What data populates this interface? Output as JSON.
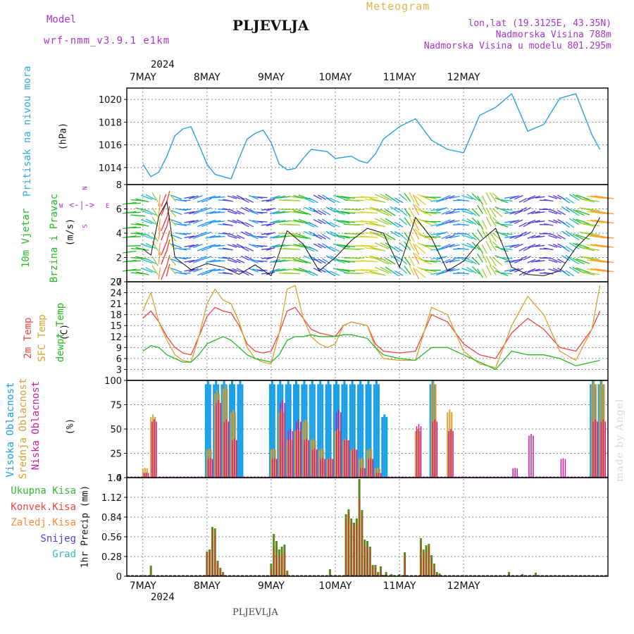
{
  "header": {
    "model_label": "Model",
    "model_name": "wrf-nmm_v3.9.1 e1km",
    "station": "PLJEVLJA",
    "meteogram": "Meteogram",
    "lonlat": "lon,lat (19.3125E, 43.35N)",
    "altitude": "Nadmorska Visina 788m",
    "model_altitude": "Nadmorska Visina u modelu 801.295m",
    "year_top": "2024",
    "year_bottom": "2024",
    "footer_station": "PLJEVLJA",
    "watermark": "made by Angel"
  },
  "days": [
    "7MAY",
    "8MAY",
    "9MAY",
    "10MAY",
    "11MAY",
    "12MAY"
  ],
  "panel_labels": {
    "pressure": {
      "name": "Pritisak na nivou mora",
      "unit": "(hPa)"
    },
    "wind": {
      "name1": "10m Vjetar",
      "name2": "Brzina i Pravac",
      "unit": "(m/s)",
      "compass_n": "N",
      "compass_s": "S",
      "compass_w": "W",
      "compass_e": "E"
    },
    "temp": {
      "t2m": "2m Temp",
      "sfc": "SFC Temp",
      "dew": "dewpt Temp",
      "unit": "(C)"
    },
    "cloud": {
      "high": "Visoka Oblacnost",
      "mid": "Srednja Oblacnost",
      "low": "Niska Oblacnost",
      "unit": "(%)"
    },
    "precip": {
      "unit": "1hr Precip (mm)"
    }
  },
  "precip_legend": [
    {
      "label": "Ukupna Kisa",
      "color": "#33bb33"
    },
    {
      "label": "Konvek.Kisa",
      "color": "#ee4444"
    },
    {
      "label": "Zaledj.Kisa",
      "color": "#ff8833"
    },
    {
      "label": "Snijeg",
      "color": "#4444dd"
    },
    {
      "label": "Grad",
      "color": "#33bbbb"
    }
  ],
  "colors": {
    "pressure": "#2a9fe0",
    "t2m": "#ee4444",
    "sfc": "#d9a030",
    "dew": "#22bb22",
    "cloud_high": "#1aa0e6",
    "cloud_mid": "#d9a030",
    "cloud_low": "#cc1aa0",
    "precip_total": "#5a8a1a",
    "precip_conv": "#d83a2a",
    "label_purple": "#aa33cc",
    "label_cyan": "#33aadd",
    "label_green": "#22bb22",
    "label_orange": "#d9a030",
    "label_magenta": "#cc1aa0",
    "title_orange": "#e8b048"
  },
  "chart_data": [
    {
      "type": "line",
      "panel": "pressure",
      "ylabel": "(hPa)",
      "ylim": [
        1012.5,
        1021
      ],
      "yticks": [
        1014,
        1016,
        1018,
        1020
      ],
      "x_hours": [
        0,
        3,
        6,
        9,
        12,
        15,
        18,
        21,
        24,
        27,
        30,
        33,
        36,
        39,
        42,
        45,
        48,
        51,
        54,
        57,
        60,
        63,
        66,
        69,
        72,
        75,
        78,
        81,
        84,
        87,
        90,
        96,
        102,
        108,
        114,
        120,
        126,
        132,
        138,
        144,
        150,
        156,
        162,
        168,
        171
      ],
      "series": [
        {
          "name": "Pritisak na nivou mora",
          "values": [
            1014.3,
            1013.2,
            1013.6,
            1015.0,
            1016.8,
            1017.4,
            1017.6,
            1016.0,
            1014.3,
            1013.4,
            1013.2,
            1013.0,
            1014.8,
            1016.5,
            1017.0,
            1017.3,
            1016.2,
            1014.3,
            1013.8,
            1013.9,
            1014.8,
            1015.6,
            1015.5,
            1015.4,
            1014.8,
            1014.9,
            1015.0,
            1014.6,
            1014.4,
            1015.2,
            1016.5,
            1017.6,
            1018.3,
            1016.4,
            1015.6,
            1015.3,
            1018.6,
            1019.3,
            1020.5,
            1017.2,
            1017.8,
            1020.1,
            1020.5,
            1016.9,
            1015.6
          ]
        }
      ],
      "grid": true
    },
    {
      "type": "line",
      "panel": "wind",
      "ylabel": "(m/s)",
      "ylim": [
        0,
        8
      ],
      "yticks": [
        0,
        2,
        4,
        6,
        8
      ],
      "x_hours": [
        0,
        3,
        6,
        9,
        12,
        18,
        24,
        30,
        36,
        42,
        48,
        54,
        60,
        66,
        72,
        78,
        84,
        90,
        96,
        102,
        108,
        114,
        120,
        126,
        132,
        138,
        144,
        150,
        156,
        162,
        168,
        171
      ],
      "series": [
        {
          "name": "Brzina",
          "values": [
            2.7,
            2.2,
            5.4,
            6.6,
            2.0,
            1.0,
            1.5,
            1.2,
            0.6,
            1.4,
            0.5,
            4.2,
            3.1,
            0.9,
            2.0,
            3.4,
            4.4,
            4.0,
            1.2,
            5.3,
            3.6,
            0.9,
            1.7,
            3.3,
            4.4,
            1.2,
            0.6,
            0.5,
            0.9,
            2.8,
            4.1,
            5.3
          ]
        }
      ],
      "grid": true
    },
    {
      "type": "line",
      "panel": "temperature",
      "ylabel": "(C)",
      "ylim": [
        0,
        27
      ],
      "yticks": [
        3,
        6,
        9,
        12,
        15,
        18,
        21,
        24,
        27
      ],
      "x_hours": [
        0,
        3,
        6,
        9,
        12,
        15,
        18,
        21,
        24,
        27,
        30,
        33,
        36,
        39,
        42,
        45,
        48,
        51,
        54,
        57,
        60,
        63,
        66,
        69,
        72,
        75,
        78,
        81,
        84,
        87,
        90,
        96,
        102,
        108,
        114,
        120,
        126,
        132,
        138,
        144,
        150,
        156,
        162,
        168,
        171
      ],
      "series": [
        {
          "name": "2m Temp",
          "values": [
            17,
            19,
            16,
            12,
            9,
            7.5,
            7,
            12,
            17.5,
            20,
            19,
            18.5,
            15,
            10,
            8,
            7.5,
            8,
            13,
            19,
            20,
            17,
            14,
            13,
            12.5,
            12,
            15,
            16,
            15.5,
            15,
            10,
            8,
            7.5,
            8,
            18,
            16,
            10,
            7,
            6,
            13,
            17,
            14,
            9,
            8,
            14,
            19
          ]
        },
        {
          "name": "SFC Temp",
          "values": [
            19,
            24,
            16,
            11,
            7,
            5.5,
            5,
            12,
            21,
            25,
            22,
            21,
            16,
            9,
            6,
            5,
            4.5,
            13,
            25,
            26,
            17,
            12,
            10,
            9,
            10,
            15,
            16,
            15.5,
            15,
            9,
            6,
            5.5,
            5.5,
            20,
            18,
            8,
            4.5,
            3.5,
            15,
            23,
            18,
            8,
            5.5,
            14,
            26
          ]
        },
        {
          "name": "dewpt Temp",
          "values": [
            8,
            9.5,
            9,
            7,
            6,
            5,
            5,
            7,
            10,
            11,
            12,
            11,
            9,
            7,
            6,
            5.5,
            5,
            7,
            11,
            12,
            12,
            12.5,
            12,
            12,
            12,
            12.5,
            12.5,
            12,
            11.5,
            9,
            7,
            6,
            5.5,
            9,
            9,
            7,
            5,
            3,
            8,
            7,
            7,
            6,
            4,
            5,
            5.5
          ]
        }
      ],
      "grid": true
    },
    {
      "type": "bar",
      "panel": "cloud",
      "ylabel": "(%)",
      "ylim": [
        0,
        100
      ],
      "yticks": [
        0,
        25,
        50,
        75,
        100
      ],
      "x_hours": [
        0,
        3,
        6,
        9,
        12,
        15,
        18,
        21,
        24,
        27,
        30,
        33,
        36,
        39,
        42,
        45,
        48,
        51,
        54,
        57,
        60,
        63,
        66,
        69,
        72,
        75,
        78,
        81,
        84,
        87,
        90,
        96,
        102,
        108,
        114,
        120,
        126,
        132,
        138,
        144,
        150,
        156,
        162,
        168,
        171
      ],
      "series": [
        {
          "name": "Visoka Oblacnost",
          "values": [
            0,
            0,
            0,
            0,
            0,
            0,
            0,
            0,
            100,
            100,
            100,
            100,
            100,
            0,
            0,
            0,
            100,
            100,
            100,
            100,
            100,
            100,
            100,
            100,
            100,
            100,
            100,
            100,
            100,
            100,
            65,
            0,
            0,
            100,
            0,
            0,
            0,
            0,
            0,
            0,
            0,
            0,
            0,
            100,
            100
          ]
        },
        {
          "name": "Srednja Oblacnost",
          "values": [
            10,
            65,
            0,
            0,
            0,
            0,
            0,
            0,
            30,
            90,
            95,
            70,
            0,
            0,
            0,
            0,
            30,
            70,
            40,
            50,
            60,
            40,
            30,
            20,
            50,
            40,
            30,
            20,
            30,
            10,
            0,
            0,
            50,
            100,
            70,
            0,
            0,
            0,
            0,
            0,
            0,
            0,
            0,
            100,
            100
          ]
        },
        {
          "name": "Niska Oblacnost",
          "values": [
            5,
            60,
            0,
            0,
            0,
            0,
            0,
            0,
            20,
            80,
            60,
            40,
            0,
            0,
            0,
            0,
            20,
            80,
            50,
            60,
            40,
            30,
            20,
            20,
            70,
            40,
            30,
            10,
            20,
            5,
            0,
            0,
            55,
            60,
            50,
            0,
            0,
            0,
            10,
            45,
            0,
            20,
            0,
            60,
            60
          ]
        }
      ],
      "grid": true
    },
    {
      "type": "bar",
      "panel": "precipitation",
      "ylabel": "1hr Precip (mm)",
      "ylim": [
        0,
        1.4
      ],
      "yticks": [
        0,
        0.28,
        0.56,
        0.84,
        1.12,
        1.4
      ],
      "x_hours": [
        3,
        24,
        25,
        26,
        27,
        28,
        29,
        30,
        48,
        49,
        50,
        51,
        52,
        53,
        54,
        70,
        76,
        77,
        78,
        79,
        80,
        81,
        82,
        83,
        84,
        85,
        86,
        87,
        88,
        89,
        90,
        91,
        93,
        96,
        98,
        104,
        105,
        106,
        107,
        108,
        109,
        110,
        111,
        137,
        142,
        147
      ],
      "series": [
        {
          "name": "Ukupna Kisa",
          "values": [
            0.15,
            0.35,
            0.38,
            0.7,
            0.68,
            0.22,
            0.12,
            0.06,
            0.18,
            0.6,
            0.5,
            0.38,
            0.42,
            0.45,
            0.08,
            0.1,
            0.88,
            0.95,
            0.82,
            0.76,
            0.82,
            1.38,
            0.94,
            0.52,
            0.5,
            0.42,
            0.16,
            0.16,
            0.06,
            0.14,
            0.02,
            0.06,
            0.03,
            0.03,
            0.34,
            0.54,
            0.38,
            0.44,
            0.46,
            0.3,
            0.18,
            0.06,
            0.04,
            0.06,
            0.03,
            0.05
          ]
        },
        {
          "name": "Konvek.Kisa",
          "values": [
            0,
            0.34,
            0.36,
            0.65,
            0.6,
            0.2,
            0.1,
            0.04,
            0.1,
            0.4,
            0.3,
            0.3,
            0.3,
            0.35,
            0.05,
            0,
            0.8,
            0.9,
            0.78,
            0.7,
            0.75,
            1.1,
            0.85,
            0.45,
            0.42,
            0.38,
            0.12,
            0.12,
            0.03,
            0.1,
            0,
            0.03,
            0,
            0,
            0.3,
            0.45,
            0.3,
            0.35,
            0.4,
            0.2,
            0.1,
            0.03,
            0,
            0.03,
            0,
            0.03
          ]
        }
      ],
      "grid": true
    }
  ]
}
